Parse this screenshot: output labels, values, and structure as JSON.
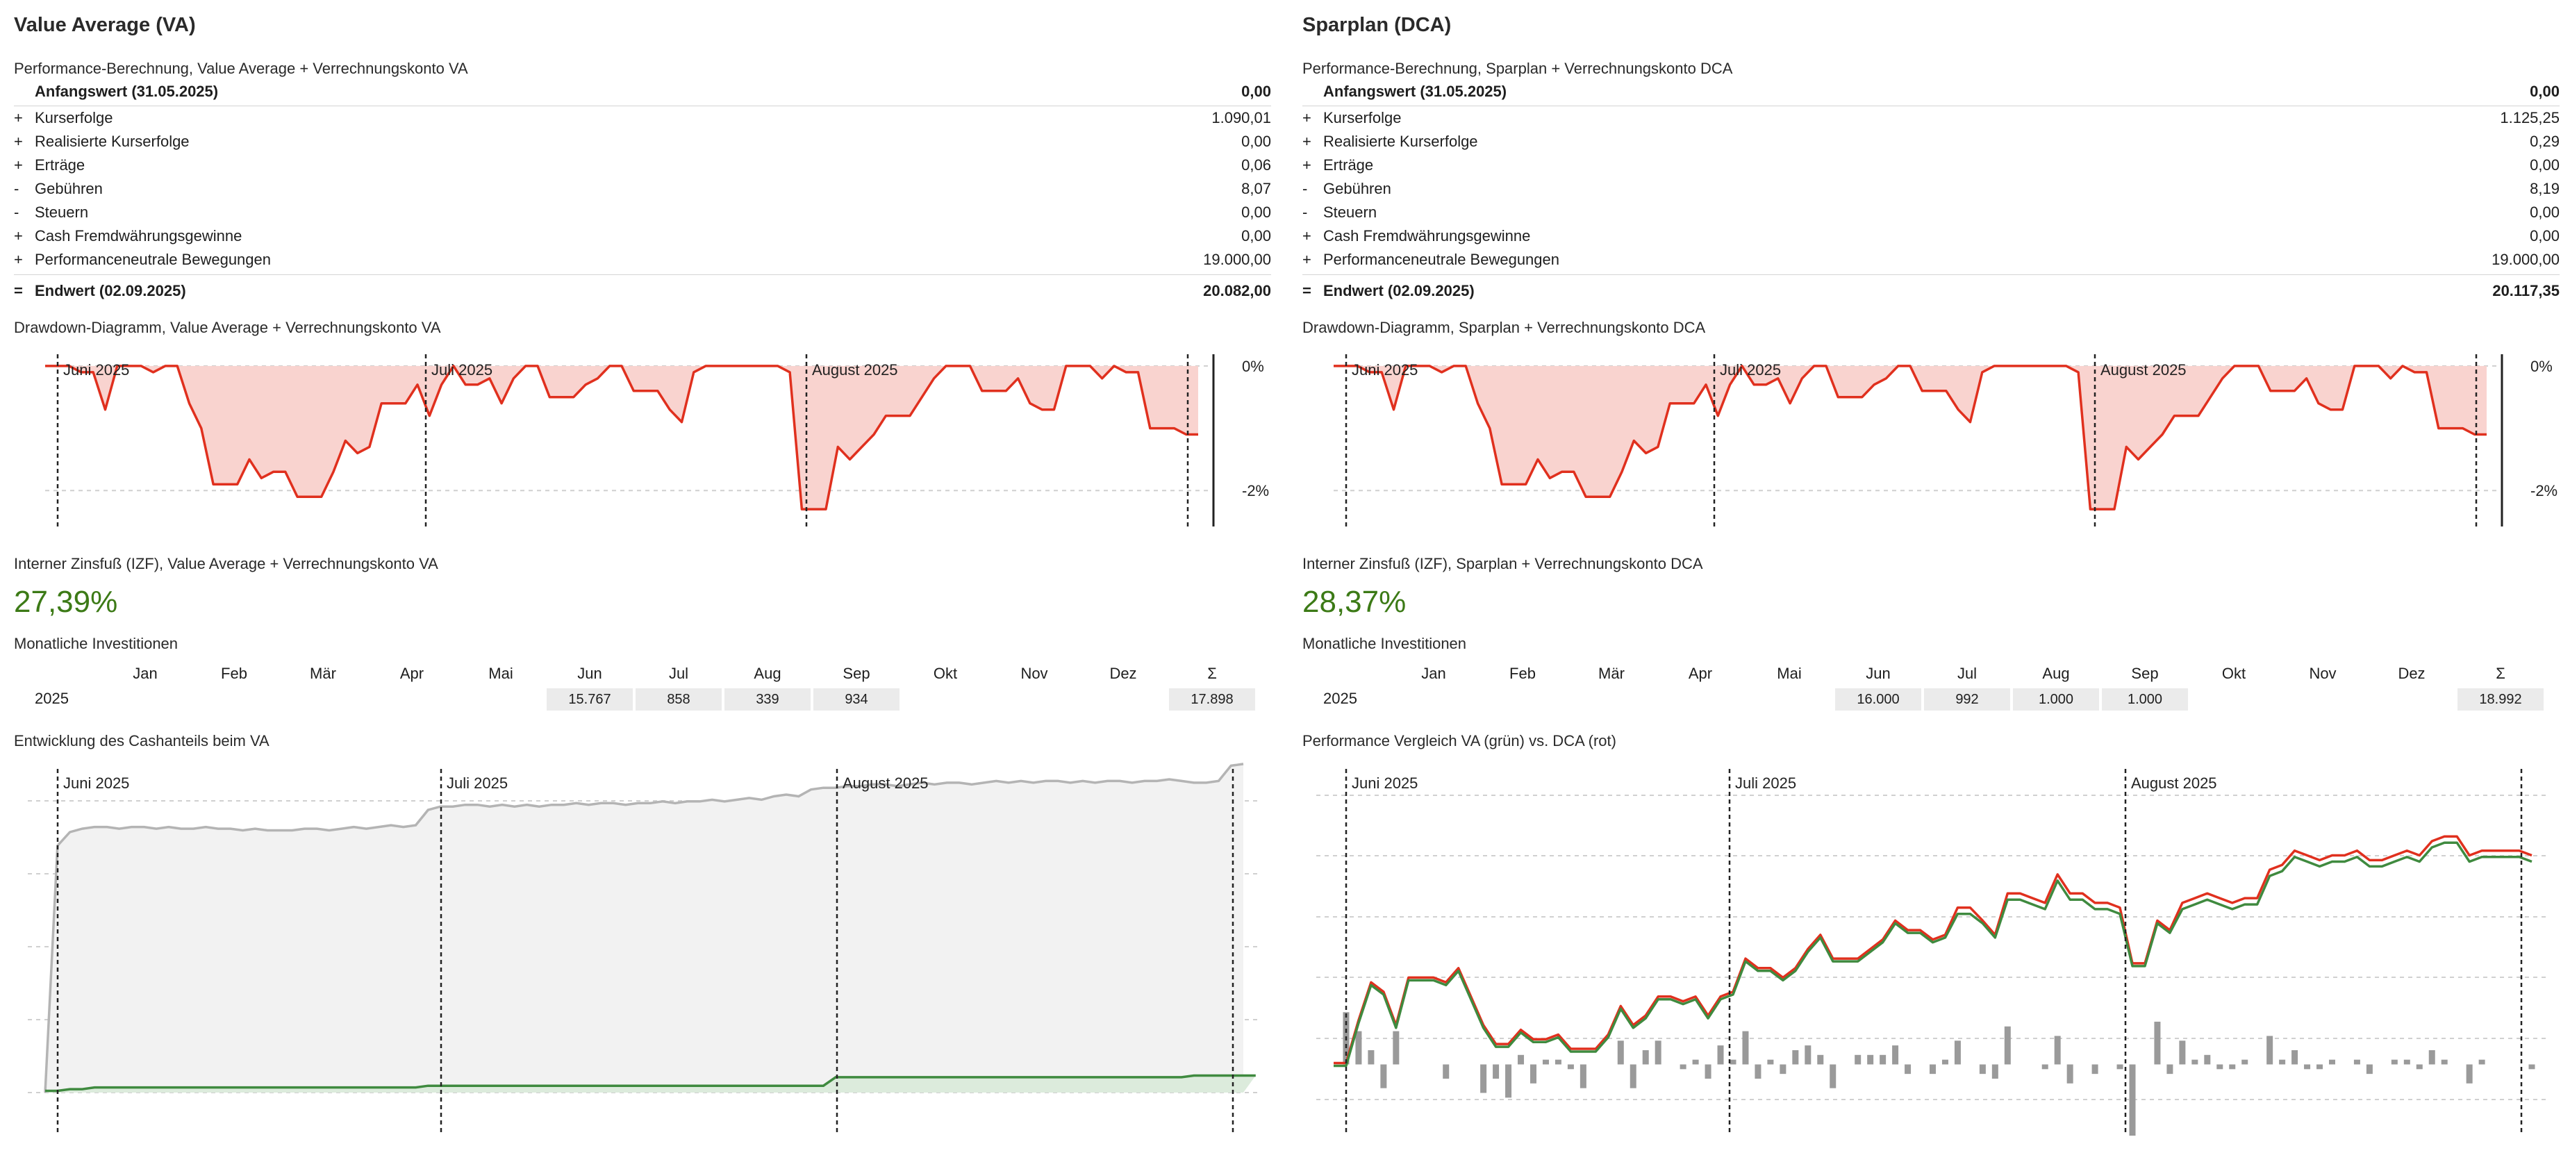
{
  "left": {
    "title": "Value Average (VA)",
    "perf_title": "Performance-Berechnung, Value Average + Verrechnungskonto VA",
    "perf_rows": [
      {
        "sign": "",
        "label": "Anfangswert (31.05.2025)",
        "value": "0,00"
      },
      {
        "sign": "+",
        "label": "Kurserfolge",
        "value": "1.090,01"
      },
      {
        "sign": "+",
        "label": "Realisierte Kurserfolge",
        "value": "0,00"
      },
      {
        "sign": "+",
        "label": "Erträge",
        "value": "0,06"
      },
      {
        "sign": "-",
        "label": "Gebühren",
        "value": "8,07"
      },
      {
        "sign": "-",
        "label": "Steuern",
        "value": "0,00"
      },
      {
        "sign": "+",
        "label": "Cash Fremdwährungsgewinne",
        "value": "0,00"
      },
      {
        "sign": "+",
        "label": "Performanceneutrale Bewegungen",
        "value": "19.000,00"
      },
      {
        "sign": "=",
        "label": "Endwert (02.09.2025)",
        "value": "20.082,00"
      }
    ],
    "dd_title": "Drawdown-Diagramm, Value Average + Verrechnungskonto VA",
    "izf_title": "Interner Zinsfuß (IZF), Value Average + Verrechnungskonto VA",
    "izf_value": "27,39%",
    "inv_title": "Monatliche Investitionen",
    "inv_values": {
      "jun": "15.767",
      "jul": "858",
      "aug": "339",
      "sep": "934",
      "sum": "17.898"
    },
    "bottom_title": "Entwicklung des Cashanteils beim VA"
  },
  "right": {
    "title": "Sparplan (DCA)",
    "perf_title": "Performance-Berechnung, Sparplan + Verrechnungskonto DCA",
    "perf_rows": [
      {
        "sign": "",
        "label": "Anfangswert (31.05.2025)",
        "value": "0,00"
      },
      {
        "sign": "+",
        "label": "Kurserfolge",
        "value": "1.125,25"
      },
      {
        "sign": "+",
        "label": "Realisierte Kurserfolge",
        "value": "0,29"
      },
      {
        "sign": "+",
        "label": "Erträge",
        "value": "0,00"
      },
      {
        "sign": "-",
        "label": "Gebühren",
        "value": "8,19"
      },
      {
        "sign": "-",
        "label": "Steuern",
        "value": "0,00"
      },
      {
        "sign": "+",
        "label": "Cash Fremdwährungsgewinne",
        "value": "0,00"
      },
      {
        "sign": "+",
        "label": "Performanceneutrale Bewegungen",
        "value": "19.000,00"
      },
      {
        "sign": "=",
        "label": "Endwert (02.09.2025)",
        "value": "20.117,35"
      }
    ],
    "dd_title": "Drawdown-Diagramm, Sparplan + Verrechnungskonto DCA",
    "izf_title": "Interner Zinsfuß (IZF), Sparplan + Verrechnungskonto DCA",
    "izf_value": "28,37%",
    "inv_title": "Monatliche Investitionen",
    "inv_values": {
      "jun": "16.000",
      "jul": "992",
      "aug": "1.000",
      "sep": "1.000",
      "sum": "18.992"
    },
    "bottom_title": "Performance Vergleich VA (grün) vs. DCA (rot)"
  },
  "months": [
    "Jan",
    "Feb",
    "Mär",
    "Apr",
    "Mai",
    "Jun",
    "Jul",
    "Aug",
    "Sep",
    "Okt",
    "Nov",
    "Dez",
    "Σ"
  ],
  "year": "2025",
  "month_markers": [
    "Juni 2025",
    "Juli 2025",
    "August 2025"
  ],
  "dd_ticks": [
    "0%",
    "-2%"
  ],
  "colors": {
    "drawdown": "#e0301e",
    "drawdown_fill": "#f9d3cf",
    "va": "#3f8a3f",
    "dca": "#e0301e",
    "cash": "#b4b4b4",
    "bars": "#9a9a9a",
    "izf": "#3c7a16"
  },
  "chart_data": [
    {
      "type": "area",
      "title": "Drawdown-Diagramm, Value Average + Verrechnungskonto VA",
      "ylabel_ticks": [
        "0%",
        "-2%"
      ],
      "ylim": [
        -2.6,
        0.3
      ],
      "values": [
        0,
        0,
        0,
        -0.1,
        -0.1,
        -0.7,
        0,
        0,
        0,
        -0.1,
        0,
        0,
        -0.6,
        -1,
        -1.9,
        -1.9,
        -1.9,
        -1.5,
        -1.8,
        -1.7,
        -1.7,
        -2.1,
        -2.1,
        -2.1,
        -1.7,
        -1.2,
        -1.4,
        -1.3,
        -0.6,
        -0.6,
        -0.6,
        -0.3,
        -0.8,
        -0.3,
        0,
        -0.3,
        -0.3,
        -0.2,
        -0.6,
        -0.2,
        0,
        0,
        -0.5,
        -0.5,
        -0.5,
        -0.3,
        -0.2,
        0,
        0,
        -0.4,
        -0.4,
        -0.4,
        -0.7,
        -0.9,
        -0.1,
        0,
        0,
        0,
        0,
        0,
        0,
        0,
        -0.1,
        -2.3,
        -2.3,
        -2.3,
        -1.3,
        -1.5,
        -1.3,
        -1.1,
        -0.8,
        -0.8,
        -0.8,
        -0.5,
        -0.2,
        0,
        0,
        0,
        -0.4,
        -0.4,
        -0.4,
        -0.2,
        -0.6,
        -0.7,
        -0.7,
        0,
        0,
        0,
        -0.2,
        0,
        -0.1,
        -0.1,
        -1,
        -1,
        -1,
        -1.1,
        -1.1
      ]
    },
    {
      "type": "area",
      "title": "Drawdown-Diagramm, Sparplan + Verrechnungskonto DCA",
      "ylabel_ticks": [
        "0%",
        "-2%"
      ],
      "ylim": [
        -2.6,
        0.3
      ],
      "values": [
        0,
        0,
        0,
        -0.1,
        -0.1,
        -0.7,
        0,
        0,
        0,
        -0.1,
        0,
        0,
        -0.6,
        -1,
        -1.9,
        -1.9,
        -1.9,
        -1.5,
        -1.8,
        -1.7,
        -1.7,
        -2.1,
        -2.1,
        -2.1,
        -1.7,
        -1.2,
        -1.4,
        -1.3,
        -0.6,
        -0.6,
        -0.6,
        -0.3,
        -0.8,
        -0.3,
        0,
        -0.3,
        -0.3,
        -0.2,
        -0.6,
        -0.2,
        0,
        0,
        -0.5,
        -0.5,
        -0.5,
        -0.3,
        -0.2,
        0,
        0,
        -0.4,
        -0.4,
        -0.4,
        -0.7,
        -0.9,
        -0.1,
        0,
        0,
        0,
        0,
        0,
        0,
        0,
        -0.1,
        -2.3,
        -2.3,
        -2.3,
        -1.3,
        -1.5,
        -1.3,
        -1.1,
        -0.8,
        -0.8,
        -0.8,
        -0.5,
        -0.2,
        0,
        0,
        0,
        -0.4,
        -0.4,
        -0.4,
        -0.2,
        -0.6,
        -0.7,
        -0.7,
        0,
        0,
        0,
        -0.2,
        0,
        -0.1,
        -0.1,
        -1,
        -1,
        -1,
        -1.1,
        -1.1
      ]
    },
    {
      "type": "area",
      "title": "Entwicklung des Cashanteils beim VA",
      "ylim": [
        0,
        1.95
      ],
      "series": [
        {
          "values": [
            0,
            1.45,
            1.53,
            1.55,
            1.56,
            1.56,
            1.55,
            1.56,
            1.56,
            1.55,
            1.56,
            1.55,
            1.55,
            1.56,
            1.55,
            1.55,
            1.54,
            1.55,
            1.54,
            1.54,
            1.54,
            1.55,
            1.55,
            1.54,
            1.55,
            1.56,
            1.55,
            1.56,
            1.57,
            1.56,
            1.57,
            1.66,
            1.68,
            1.68,
            1.69,
            1.69,
            1.68,
            1.69,
            1.68,
            1.69,
            1.68,
            1.69,
            1.69,
            1.7,
            1.69,
            1.7,
            1.7,
            1.69,
            1.7,
            1.7,
            1.71,
            1.7,
            1.71,
            1.71,
            1.72,
            1.71,
            1.72,
            1.73,
            1.72,
            1.74,
            1.75,
            1.74,
            1.78,
            1.79,
            1.79,
            1.8,
            1.8,
            1.81,
            1.81,
            1.8,
            1.81,
            1.82,
            1.81,
            1.82,
            1.82,
            1.81,
            1.82,
            1.83,
            1.82,
            1.83,
            1.82,
            1.83,
            1.83,
            1.82,
            1.83,
            1.82,
            1.83,
            1.83,
            1.82,
            1.83,
            1.83,
            1.84,
            1.83,
            1.82,
            1.82,
            1.83,
            1.92,
            1.93
          ]
        },
        {
          "values": [
            0.01,
            0.01,
            0.02,
            0.02,
            0.03,
            0.03,
            0.03,
            0.03,
            0.03,
            0.03,
            0.03,
            0.03,
            0.03,
            0.03,
            0.03,
            0.03,
            0.03,
            0.03,
            0.03,
            0.03,
            0.03,
            0.03,
            0.03,
            0.03,
            0.03,
            0.03,
            0.03,
            0.03,
            0.03,
            0.03,
            0.03,
            0.04,
            0.04,
            0.04,
            0.04,
            0.04,
            0.04,
            0.04,
            0.04,
            0.04,
            0.04,
            0.04,
            0.04,
            0.04,
            0.04,
            0.04,
            0.04,
            0.04,
            0.04,
            0.04,
            0.04,
            0.04,
            0.04,
            0.04,
            0.04,
            0.04,
            0.04,
            0.04,
            0.04,
            0.04,
            0.04,
            0.04,
            0.04,
            0.04,
            0.09,
            0.09,
            0.09,
            0.09,
            0.09,
            0.09,
            0.09,
            0.09,
            0.09,
            0.09,
            0.09,
            0.09,
            0.09,
            0.09,
            0.09,
            0.09,
            0.09,
            0.09,
            0.09,
            0.09,
            0.09,
            0.09,
            0.09,
            0.09,
            0.09,
            0.09,
            0.09,
            0.09,
            0.09,
            0.1,
            0.1,
            0.1,
            0.1,
            0.1,
            0.1
          ]
        }
      ]
    },
    {
      "type": "line",
      "title": "Performance Vergleich VA (grün) vs. DCA (rot)",
      "ylim": [
        -1.5,
        6.4
      ],
      "series": [
        {
          "values": [
            0,
            0,
            0.9,
            1.7,
            1.5,
            0.8,
            1.8,
            1.8,
            1.8,
            1.7,
            2,
            1.4,
            0.8,
            0.4,
            0.4,
            0.7,
            0.5,
            0.5,
            0.6,
            0.3,
            0.3,
            0.3,
            0.6,
            1.2,
            0.8,
            1,
            1.4,
            1.4,
            1.3,
            1.4,
            1,
            1.4,
            1.5,
            2.2,
            2,
            2,
            1.8,
            2,
            2.4,
            2.7,
            2.2,
            2.2,
            2.2,
            2.4,
            2.6,
            3,
            2.8,
            2.8,
            2.6,
            2.7,
            3.2,
            3.2,
            3,
            2.7,
            3.5,
            3.5,
            3.4,
            3.3,
            3.9,
            3.5,
            3.5,
            3.3,
            3.3,
            3.2,
            2.1,
            2.1,
            3,
            2.8,
            3.3,
            3.4,
            3.5,
            3.4,
            3.3,
            3.4,
            3.4,
            4,
            4.1,
            4.4,
            4.3,
            4.2,
            4.3,
            4.3,
            4.4,
            4.2,
            4.2,
            4.3,
            4.4,
            4.3,
            4.6,
            4.7,
            4.7,
            4.3,
            4.4,
            4.4,
            4.4,
            4.4,
            4.3
          ]
        },
        {
          "values": [
            0,
            0,
            0.9,
            1.7,
            1.5,
            0.8,
            1.8,
            1.8,
            1.8,
            1.7,
            2,
            1.4,
            0.8,
            0.4,
            0.4,
            0.7,
            0.5,
            0.5,
            0.6,
            0.3,
            0.3,
            0.3,
            0.6,
            1.2,
            0.8,
            1,
            1.4,
            1.4,
            1.3,
            1.4,
            1,
            1.4,
            1.5,
            2.2,
            2,
            2,
            1.8,
            2,
            2.4,
            2.7,
            2.2,
            2.2,
            2.2,
            2.4,
            2.6,
            3,
            2.8,
            2.8,
            2.6,
            2.7,
            3.2,
            3.2,
            3,
            2.7,
            3.5,
            3.5,
            3.4,
            3.3,
            3.9,
            3.5,
            3.5,
            3.3,
            3.3,
            3.2,
            2.1,
            2.1,
            3,
            2.8,
            3.3,
            3.4,
            3.5,
            3.4,
            3.3,
            3.4,
            3.4,
            4,
            4.1,
            4.4,
            4.3,
            4.2,
            4.3,
            4.3,
            4.4,
            4.2,
            4.2,
            4.3,
            4.4,
            4.3,
            4.6,
            4.7,
            4.7,
            4.3,
            4.4,
            4.4,
            4.4,
            4.4,
            4.3
          ]
        }
      ],
      "bars": [
        0,
        1.1,
        0.7,
        0.3,
        -0.5,
        0.7,
        0,
        0,
        0,
        -0.3,
        0,
        0,
        -0.6,
        -0.3,
        -0.7,
        0.2,
        -0.4,
        0.1,
        0.1,
        -0.1,
        -0.5,
        0,
        0,
        0.5,
        -0.5,
        0.3,
        0.5,
        0,
        -0.1,
        0.1,
        -0.3,
        0.4,
        0.1,
        0.7,
        -0.3,
        0.1,
        -0.2,
        0.3,
        0.4,
        0.2,
        -0.5,
        0,
        0.2,
        0.2,
        0.2,
        0.4,
        -0.2,
        0,
        -0.2,
        0.1,
        0.5,
        0,
        -0.2,
        -0.3,
        0.8,
        0,
        0,
        -0.1,
        0.6,
        -0.4,
        0,
        -0.2,
        0,
        -0.1,
        -1.8,
        0,
        0.9,
        -0.2,
        0.5,
        0.1,
        0.2,
        -0.1,
        -0.1,
        0.1,
        0,
        0.6,
        0.1,
        0.3,
        -0.1,
        -0.1,
        0.1,
        0,
        0.1,
        -0.2,
        0,
        0.1,
        0.1,
        -0.1,
        0.3,
        0.1,
        0,
        -0.4,
        0.1,
        0,
        0,
        0,
        -0.1
      ]
    }
  ]
}
